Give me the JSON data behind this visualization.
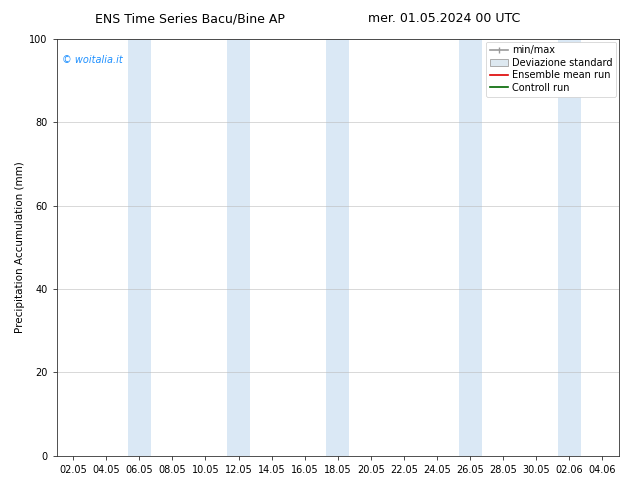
{
  "title_left": "ENS Time Series Bacu/Bine AP",
  "title_right": "mer. 01.05.2024 00 UTC",
  "ylabel": "Precipitation Accumulation (mm)",
  "ylim": [
    0,
    100
  ],
  "yticks": [
    0,
    20,
    40,
    60,
    80,
    100
  ],
  "background_color": "#ffffff",
  "plot_bg_color": "#ffffff",
  "watermark_text": "© woitalia.it",
  "watermark_color": "#1E90FF",
  "legend_labels": [
    "min/max",
    "Deviazione standard",
    "Ensemble mean run",
    "Controll run"
  ],
  "shaded_band_color": "#dae8f5",
  "band_dates": [
    "06.05",
    "12.05",
    "18.05",
    "26.05",
    "02.06"
  ],
  "xtick_labels": [
    "02.05",
    "04.05",
    "06.05",
    "08.05",
    "10.05",
    "12.05",
    "14.05",
    "16.05",
    "18.05",
    "20.05",
    "22.05",
    "24.05",
    "26.05",
    "28.05",
    "30.05",
    "02.06",
    "04.06"
  ],
  "title_fontsize": 9,
  "axis_label_fontsize": 7.5,
  "tick_fontsize": 7,
  "legend_fontsize": 7,
  "watermark_fontsize": 7
}
